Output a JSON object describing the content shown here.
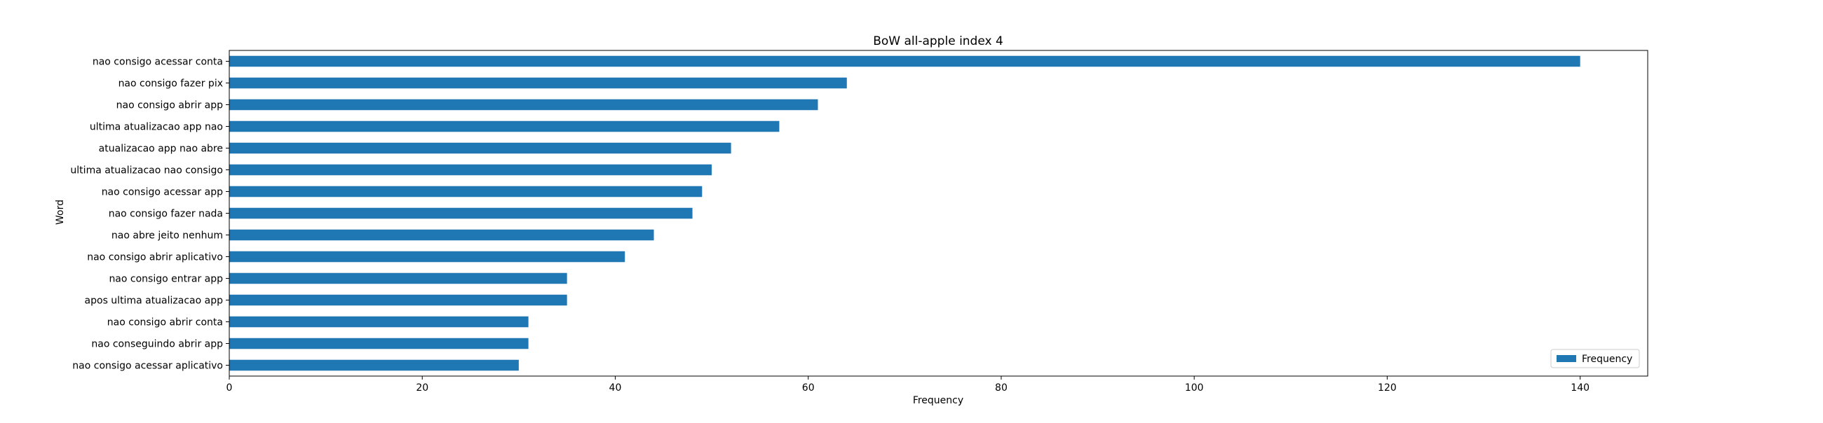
{
  "chart_data": {
    "type": "bar",
    "orientation": "horizontal",
    "title": "BoW all-apple index 4",
    "xlabel": "Frequency",
    "ylabel": "Word",
    "xlim": [
      0,
      147
    ],
    "xticks": [
      0,
      20,
      40,
      60,
      80,
      100,
      120,
      140
    ],
    "grid": false,
    "legend": {
      "placement": "bottom-right",
      "entries": [
        "Frequency"
      ]
    },
    "bar_color": "#1f77b4",
    "categories": [
      "nao consigo acessar conta",
      "nao consigo fazer pix",
      "nao consigo abrir app",
      "ultima atualizacao app nao",
      "atualizacao app nao abre",
      "ultima atualizacao nao consigo",
      "nao consigo acessar app",
      "nao consigo fazer nada",
      "nao abre jeito nenhum",
      "nao consigo abrir aplicativo",
      "nao consigo entrar app",
      "apos ultima atualizacao app",
      "nao consigo abrir conta",
      "nao conseguindo abrir app",
      "nao consigo acessar aplicativo"
    ],
    "series": [
      {
        "name": "Frequency",
        "values": [
          140,
          64,
          61,
          57,
          52,
          50,
          49,
          48,
          44,
          41,
          35,
          35,
          31,
          31,
          30
        ]
      }
    ]
  }
}
